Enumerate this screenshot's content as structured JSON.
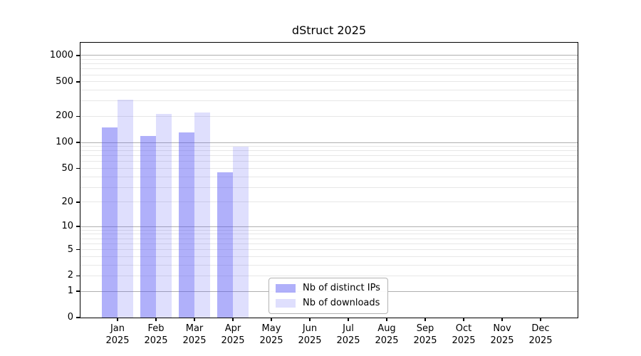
{
  "chart_data": {
    "type": "bar",
    "title": "dStruct 2025",
    "categories": [
      "Jan",
      "Feb",
      "Mar",
      "Apr",
      "May",
      "Jun",
      "Jul",
      "Aug",
      "Sep",
      "Oct",
      "Nov",
      "Dec"
    ],
    "category_year": "2025",
    "series": [
      {
        "name": "Nb of distinct IPs",
        "color": "rgba(80,80,245,0.45)",
        "values": [
          150,
          120,
          130,
          45,
          0,
          0,
          0,
          0,
          0,
          0,
          0,
          0
        ]
      },
      {
        "name": "Nb of downloads",
        "color": "rgba(80,80,245,0.18)",
        "values": [
          310,
          215,
          220,
          90,
          0,
          0,
          0,
          0,
          0,
          0,
          0,
          0
        ]
      }
    ],
    "y_ticks": [
      {
        "label": "1000",
        "value": 1000
      },
      {
        "label": "500",
        "value": 500
      },
      {
        "label": "200",
        "value": 200
      },
      {
        "label": "100",
        "value": 100
      },
      {
        "label": "50",
        "value": 50
      },
      {
        "label": "20",
        "value": 20
      },
      {
        "label": "10",
        "value": 10
      },
      {
        "label": "5",
        "value": 5
      },
      {
        "label": "2",
        "value": 2
      },
      {
        "label": "1",
        "value": 1
      },
      {
        "label": "0",
        "value": 0
      }
    ],
    "minor_grid_values": [
      2,
      3,
      4,
      5,
      6,
      7,
      8,
      9,
      20,
      30,
      40,
      50,
      60,
      70,
      80,
      90,
      200,
      300,
      400,
      500,
      600,
      700,
      800,
      900
    ],
    "major_grid_values": [
      1,
      10,
      100,
      1000
    ],
    "ylim": [
      0,
      1400
    ],
    "scale": "log10(v+1)",
    "grid": "horizontal major+minor",
    "legend_position": "inside lower-center-left",
    "colors": {
      "major_grid": "#b0b0b0",
      "minor_grid": "#e7e7e7",
      "spine": "#000000",
      "background": "#ffffff"
    }
  }
}
